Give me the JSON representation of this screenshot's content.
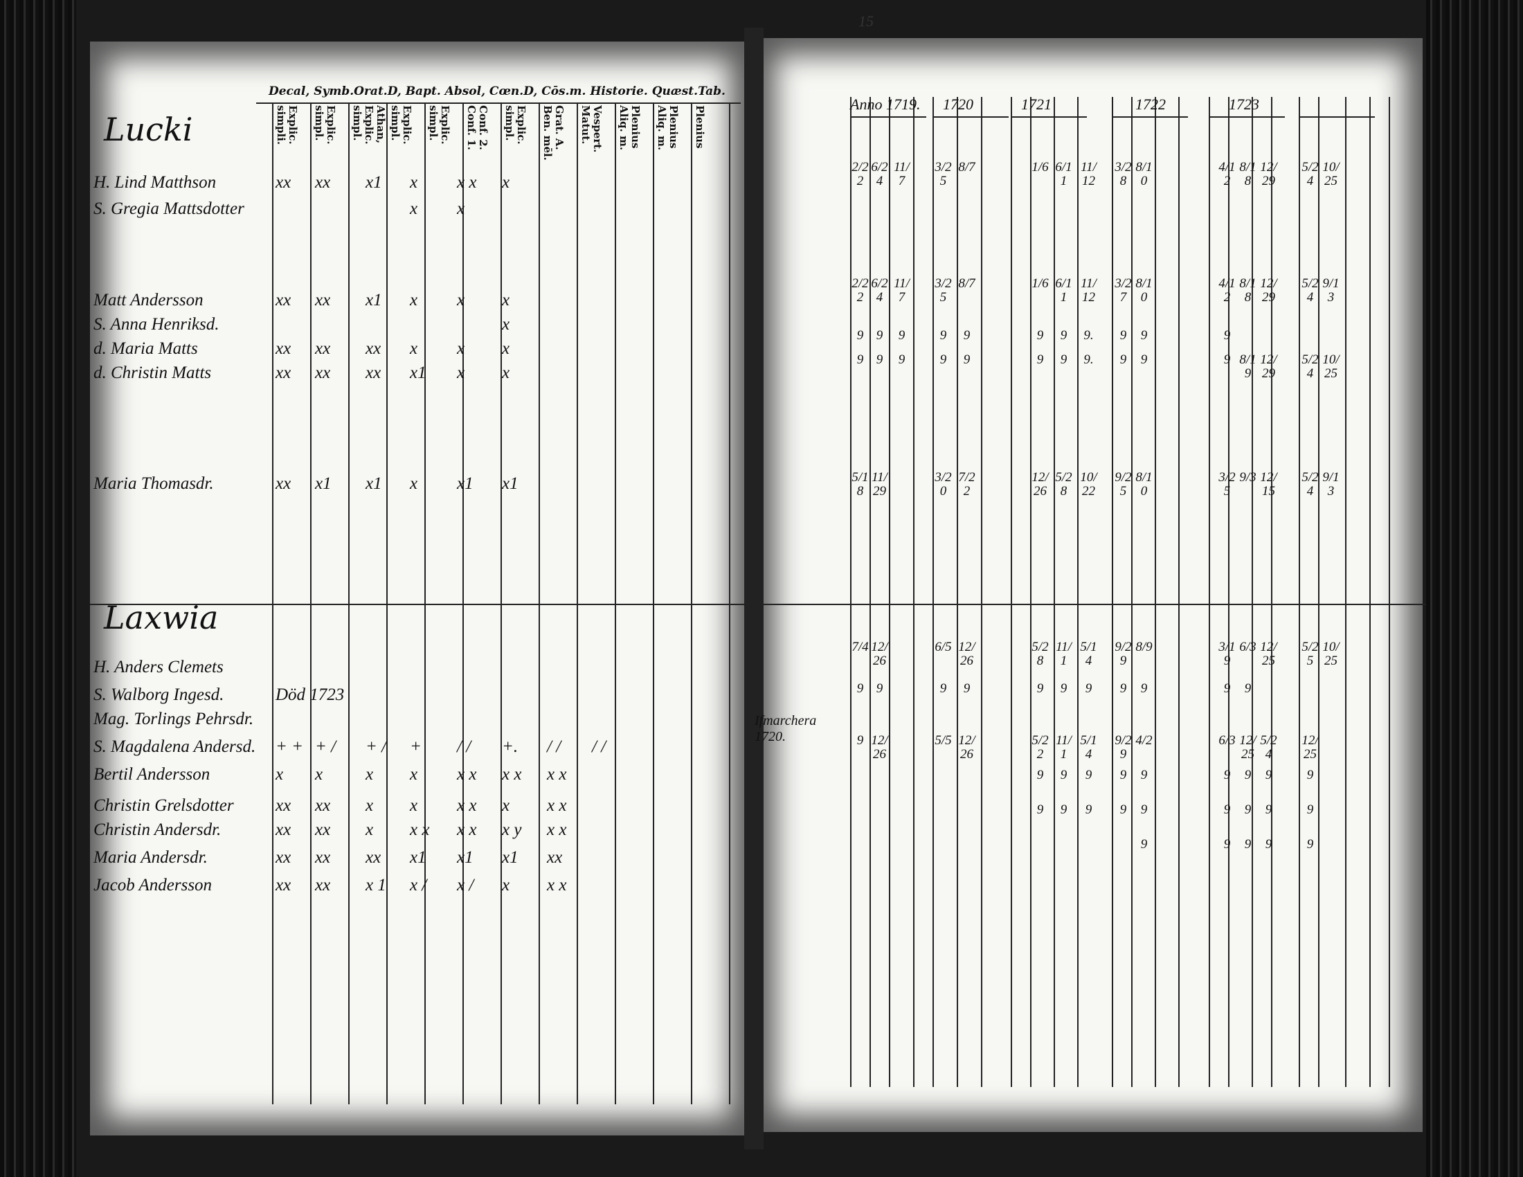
{
  "left_page": {
    "printed_header": "Decal, Symb.Orat.D, Bapt. Absol, Cœn.D, Cōs.m. Historie. Quæst.Tab.",
    "column_headers": [
      "Explic. simpli.",
      "Explic. simpl.",
      "Athan, Explic. simpl.",
      "Explic. simpl.",
      "Explic. simpl.",
      "Conf. 2. Conf. 1.",
      "Explic. simpl.",
      "Grat. A. Ben. mēl.",
      "Vespert. Matut.",
      "Plenius Aliq. m.",
      "Plenius Aliq. m.",
      "Plenius"
    ],
    "sections": [
      {
        "title": "Lucki",
        "rows": [
          {
            "name": "H. Lind Matthson",
            "marks": [
              "xx",
              "xx",
              "x1",
              "x",
              "x x",
              "x"
            ]
          },
          {
            "name": "S. Gregia Mattsdotter",
            "marks": [
              "",
              "",
              "",
              "x",
              "x",
              ""
            ]
          },
          {
            "name": "Matt Andersson",
            "marks": [
              "xx",
              "xx",
              "x1",
              "x",
              "x",
              "x"
            ]
          },
          {
            "name": "S. Anna Henriksd.",
            "marks": [
              "",
              "",
              "",
              "",
              "",
              "x"
            ]
          },
          {
            "name": "d. Maria Matts",
            "marks": [
              "xx",
              "xx",
              "xx",
              "x",
              "x",
              "x"
            ]
          },
          {
            "name": "d. Christin Matts",
            "marks": [
              "xx",
              "xx",
              "xx",
              "x1",
              "x",
              "x"
            ]
          },
          {
            "name": "Maria Thomasdr.",
            "marks": [
              "xx",
              "x1",
              "x1",
              "x",
              "x1",
              "x1"
            ]
          }
        ]
      },
      {
        "title": "Laxwia",
        "rows": [
          {
            "name": "H. Anders Clemets",
            "marks": []
          },
          {
            "name": "S. Walborg Ingesd.",
            "marks": [
              "Död 1723"
            ]
          },
          {
            "name": "Mag. Torlings Pehrsdr.",
            "marks": []
          },
          {
            "name": "S. Magdalena Andersd.",
            "marks": [
              "+ +",
              "+ /",
              "+ /",
              "+",
              "/ /",
              "+.",
              "/ /",
              "/ /"
            ]
          },
          {
            "name": "Bertil Andersson",
            "marks": [
              "x",
              "x",
              "x",
              "x",
              "x x",
              "x x",
              "x x"
            ]
          },
          {
            "name": "Christin Grelsdotter",
            "marks": [
              "xx",
              "xx",
              "x",
              "x",
              "x x",
              "x",
              "x x"
            ]
          },
          {
            "name": "Christin Andersdr.",
            "marks": [
              "xx",
              "xx",
              "x",
              "x x",
              "x x",
              "x y",
              "x x"
            ]
          },
          {
            "name": "Maria Andersdr.",
            "marks": [
              "xx",
              "xx",
              "xx",
              "x1",
              "x1",
              "x1",
              "xx"
            ]
          },
          {
            "name": "Jacob Andersson",
            "marks": [
              "xx",
              "xx",
              "x 1",
              "x /",
              "x /",
              "x",
              "x x"
            ]
          }
        ]
      }
    ]
  },
  "right_page": {
    "page_number": "15",
    "years": [
      "Anno 1719.",
      "1720",
      "1721",
      "1722",
      "1723"
    ],
    "side_note": "Ifmarchera 1720.",
    "rows": [
      [
        "2/22",
        "6/24",
        "11/7",
        "3/25",
        "8/7",
        "1/6",
        "6/11",
        "11/12",
        "3/28",
        "8/10",
        "4/12",
        "8/18",
        "12/29",
        "5/24",
        "10/25"
      ],
      [
        "2/22",
        "6/24",
        "11/7",
        "3/25",
        "8/7",
        "1/6",
        "6/11",
        "11/12",
        "3/27",
        "8/10",
        "4/12",
        "8/18",
        "12/29",
        "5/24",
        "9/13"
      ],
      [
        "9",
        "9",
        "9",
        "9",
        "9",
        "9",
        "9",
        "9.",
        "9",
        "9",
        "9",
        "",
        "",
        "",
        ""
      ],
      [
        "9",
        "9",
        "9",
        "9",
        "9",
        "9",
        "9",
        "9.",
        "9",
        "9",
        "9",
        "8/19",
        "12/29",
        "5/24",
        "10/25"
      ],
      [
        "5/18",
        "11/29",
        "",
        "3/20",
        "7/22",
        "12/26",
        "5/28",
        "10/22",
        "9/25",
        "8/10",
        "3/25",
        "9/3",
        "12/15",
        "5/24",
        "9/13"
      ],
      [
        "7/4",
        "12/26",
        "",
        "6/5",
        "12/26",
        "5/28",
        "11/1",
        "5/14",
        "9/29",
        "8/9",
        "3/19",
        "6/3",
        "12/25",
        "5/25",
        "10/25"
      ],
      [
        "9",
        "9",
        "",
        "9",
        "9",
        "9",
        "9",
        "9",
        "9",
        "9",
        "9",
        "9",
        "",
        "",
        ""
      ],
      [
        "9",
        "12/26",
        "",
        "5/5",
        "12/26",
        "5/22",
        "11/1",
        "5/14",
        "9/29",
        "4/2",
        "6/3",
        "12/25",
        "5/24",
        "12/25",
        ""
      ],
      [
        "",
        "",
        "",
        "",
        "",
        "9",
        "9",
        "9",
        "9",
        "9",
        "9",
        "9",
        "9",
        "9",
        ""
      ],
      [
        "",
        "",
        "",
        "",
        "",
        "9",
        "9",
        "9",
        "9",
        "9",
        "9",
        "9",
        "9",
        "9",
        ""
      ],
      [
        "",
        "",
        "",
        "",
        "",
        "",
        "",
        "",
        "",
        "9",
        "9",
        "9",
        "9",
        "9",
        ""
      ]
    ]
  }
}
